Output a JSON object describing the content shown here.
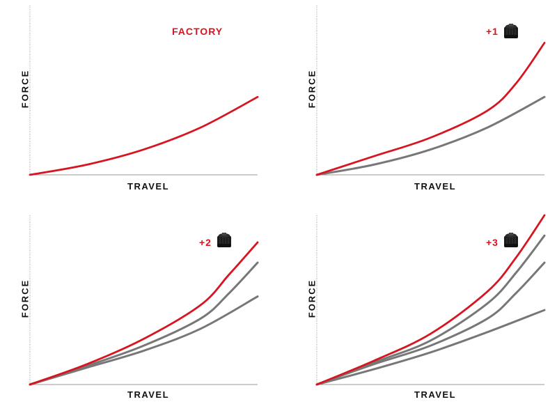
{
  "colors": {
    "highlight": "#d7141f",
    "previous": "#777777",
    "axis": "#999999"
  },
  "chart_data": [
    {
      "type": "line",
      "title": "",
      "badge": "FACTORY",
      "xlabel": "TRAVEL",
      "ylabel": "FORCE",
      "xlim": [
        0,
        1
      ],
      "ylim": [
        0,
        1
      ],
      "grid": false,
      "series": [
        {
          "color": "highlight",
          "x": [
            0,
            0.25,
            0.5,
            0.75,
            1.0
          ],
          "y": [
            0,
            0.06,
            0.15,
            0.28,
            0.46
          ]
        }
      ]
    },
    {
      "type": "line",
      "title": "",
      "badge": "+1",
      "badge_icon": "volume-spacer-icon",
      "xlabel": "TRAVEL",
      "ylabel": "FORCE",
      "xlim": [
        0,
        1
      ],
      "ylim": [
        0,
        1
      ],
      "grid": false,
      "series": [
        {
          "color": "previous",
          "x": [
            0,
            0.25,
            0.5,
            0.75,
            1.0
          ],
          "y": [
            0,
            0.06,
            0.15,
            0.28,
            0.46
          ]
        },
        {
          "color": "highlight",
          "x": [
            0,
            0.25,
            0.5,
            0.75,
            0.875,
            1.0
          ],
          "y": [
            0,
            0.11,
            0.22,
            0.38,
            0.54,
            0.78
          ]
        }
      ]
    },
    {
      "type": "line",
      "title": "",
      "badge": "+2",
      "badge_icon": "volume-spacer-icon",
      "xlabel": "TRAVEL",
      "ylabel": "FORCE",
      "xlim": [
        0,
        1
      ],
      "ylim": [
        0,
        1
      ],
      "grid": false,
      "series": [
        {
          "color": "previous",
          "x": [
            0,
            0.25,
            0.5,
            0.75,
            1.0
          ],
          "y": [
            0,
            0.1,
            0.2,
            0.33,
            0.52
          ]
        },
        {
          "color": "previous",
          "x": [
            0,
            0.25,
            0.5,
            0.75,
            0.875,
            1.0
          ],
          "y": [
            0,
            0.11,
            0.23,
            0.39,
            0.54,
            0.72
          ]
        },
        {
          "color": "highlight",
          "x": [
            0,
            0.25,
            0.5,
            0.75,
            0.875,
            1.0
          ],
          "y": [
            0,
            0.12,
            0.27,
            0.47,
            0.65,
            0.84
          ]
        }
      ]
    },
    {
      "type": "line",
      "title": "",
      "badge": "+3",
      "badge_icon": "volume-spacer-icon",
      "xlabel": "TRAVEL",
      "ylabel": "FORCE",
      "xlim": [
        0,
        1
      ],
      "ylim": [
        0,
        1
      ],
      "grid": false,
      "series": [
        {
          "color": "previous",
          "x": [
            0,
            0.25,
            0.5,
            0.75,
            1.0
          ],
          "y": [
            0,
            0.09,
            0.19,
            0.31,
            0.44
          ]
        },
        {
          "color": "previous",
          "x": [
            0,
            0.25,
            0.5,
            0.75,
            0.875,
            1.0
          ],
          "y": [
            0,
            0.12,
            0.23,
            0.39,
            0.54,
            0.72
          ]
        },
        {
          "color": "previous",
          "x": [
            0,
            0.25,
            0.5,
            0.75,
            0.875,
            1.0
          ],
          "y": [
            0,
            0.13,
            0.26,
            0.48,
            0.66,
            0.88
          ]
        },
        {
          "color": "highlight",
          "x": [
            0,
            0.25,
            0.5,
            0.75,
            0.875,
            1.0
          ],
          "y": [
            0,
            0.14,
            0.3,
            0.55,
            0.75,
            1.0
          ]
        }
      ]
    }
  ]
}
